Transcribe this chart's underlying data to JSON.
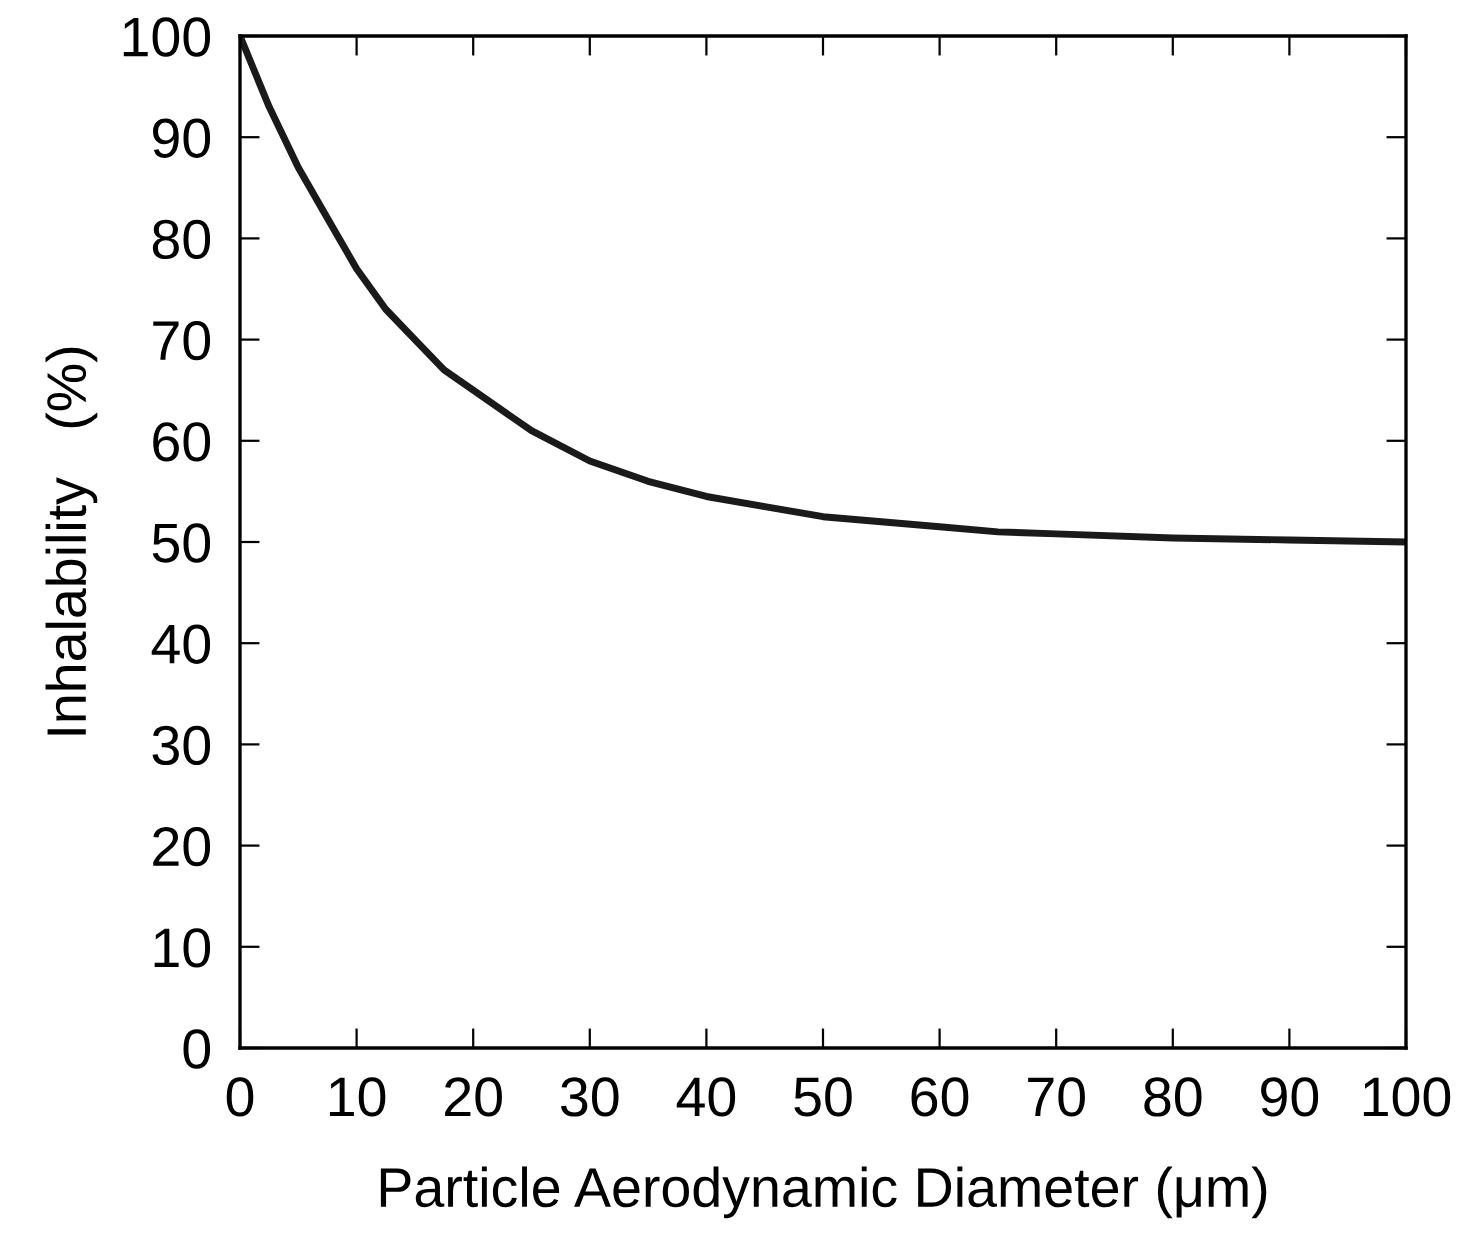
{
  "chart_data": {
    "type": "line",
    "xlabel": "Particle Aerodynamic Diameter (μm)",
    "ylabel": "Inhalability   (%)",
    "x": [
      0,
      2.5,
      5,
      7.5,
      10,
      12.5,
      15,
      17.5,
      20,
      25,
      30,
      35,
      40,
      45,
      50,
      55,
      60,
      65,
      70,
      80,
      90,
      100
    ],
    "series": [
      {
        "color": "#1a1a1a",
        "values": [
          100,
          93,
          87,
          82,
          77,
          73,
          70,
          67,
          65,
          61,
          58,
          56,
          54.5,
          53.5,
          52.5,
          52,
          51.5,
          51,
          50.8,
          50.4,
          50.2,
          50
        ]
      }
    ],
    "xlim": [
      0,
      100
    ],
    "ylim": [
      0,
      100
    ],
    "xticks": [
      0,
      10,
      20,
      30,
      40,
      50,
      60,
      70,
      80,
      90,
      100
    ],
    "yticks": [
      0,
      10,
      20,
      30,
      40,
      50,
      60,
      70,
      80,
      90,
      100
    ],
    "grid": false,
    "marker": "none",
    "line_style": "solid"
  }
}
